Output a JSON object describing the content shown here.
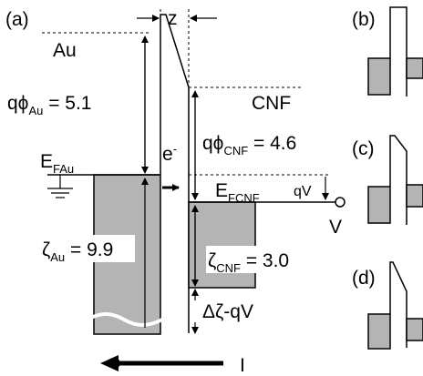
{
  "panels": {
    "a": "(a)",
    "b": "(b)",
    "c": "(c)",
    "d": "(d)"
  },
  "labels": {
    "au": "Au",
    "cnf": "CNF",
    "z": "z",
    "electron": "e",
    "electron_sup": "-",
    "v": "V",
    "i": "I",
    "qv": "qV",
    "delta": "Δζ-qV"
  },
  "phi_au": {
    "q": "qϕ",
    "sub": "Au",
    "value": " = 5.1"
  },
  "phi_cnf": {
    "q": "qϕ",
    "sub": "CNF",
    "value": " = 4.6"
  },
  "zeta_au": {
    "sym": "ζ",
    "sub": "Au",
    "value": " = 9.9"
  },
  "zeta_cnf": {
    "sym": "ζ",
    "sub": "CNF",
    "value": " = 3.0"
  },
  "ef_au": {
    "e": "E",
    "sub": "FAu"
  },
  "ef_cnf": {
    "e": "E",
    "sub": "FCNF"
  },
  "colors": {
    "band_fill": "#b4b4b4",
    "ink": "#000000"
  }
}
